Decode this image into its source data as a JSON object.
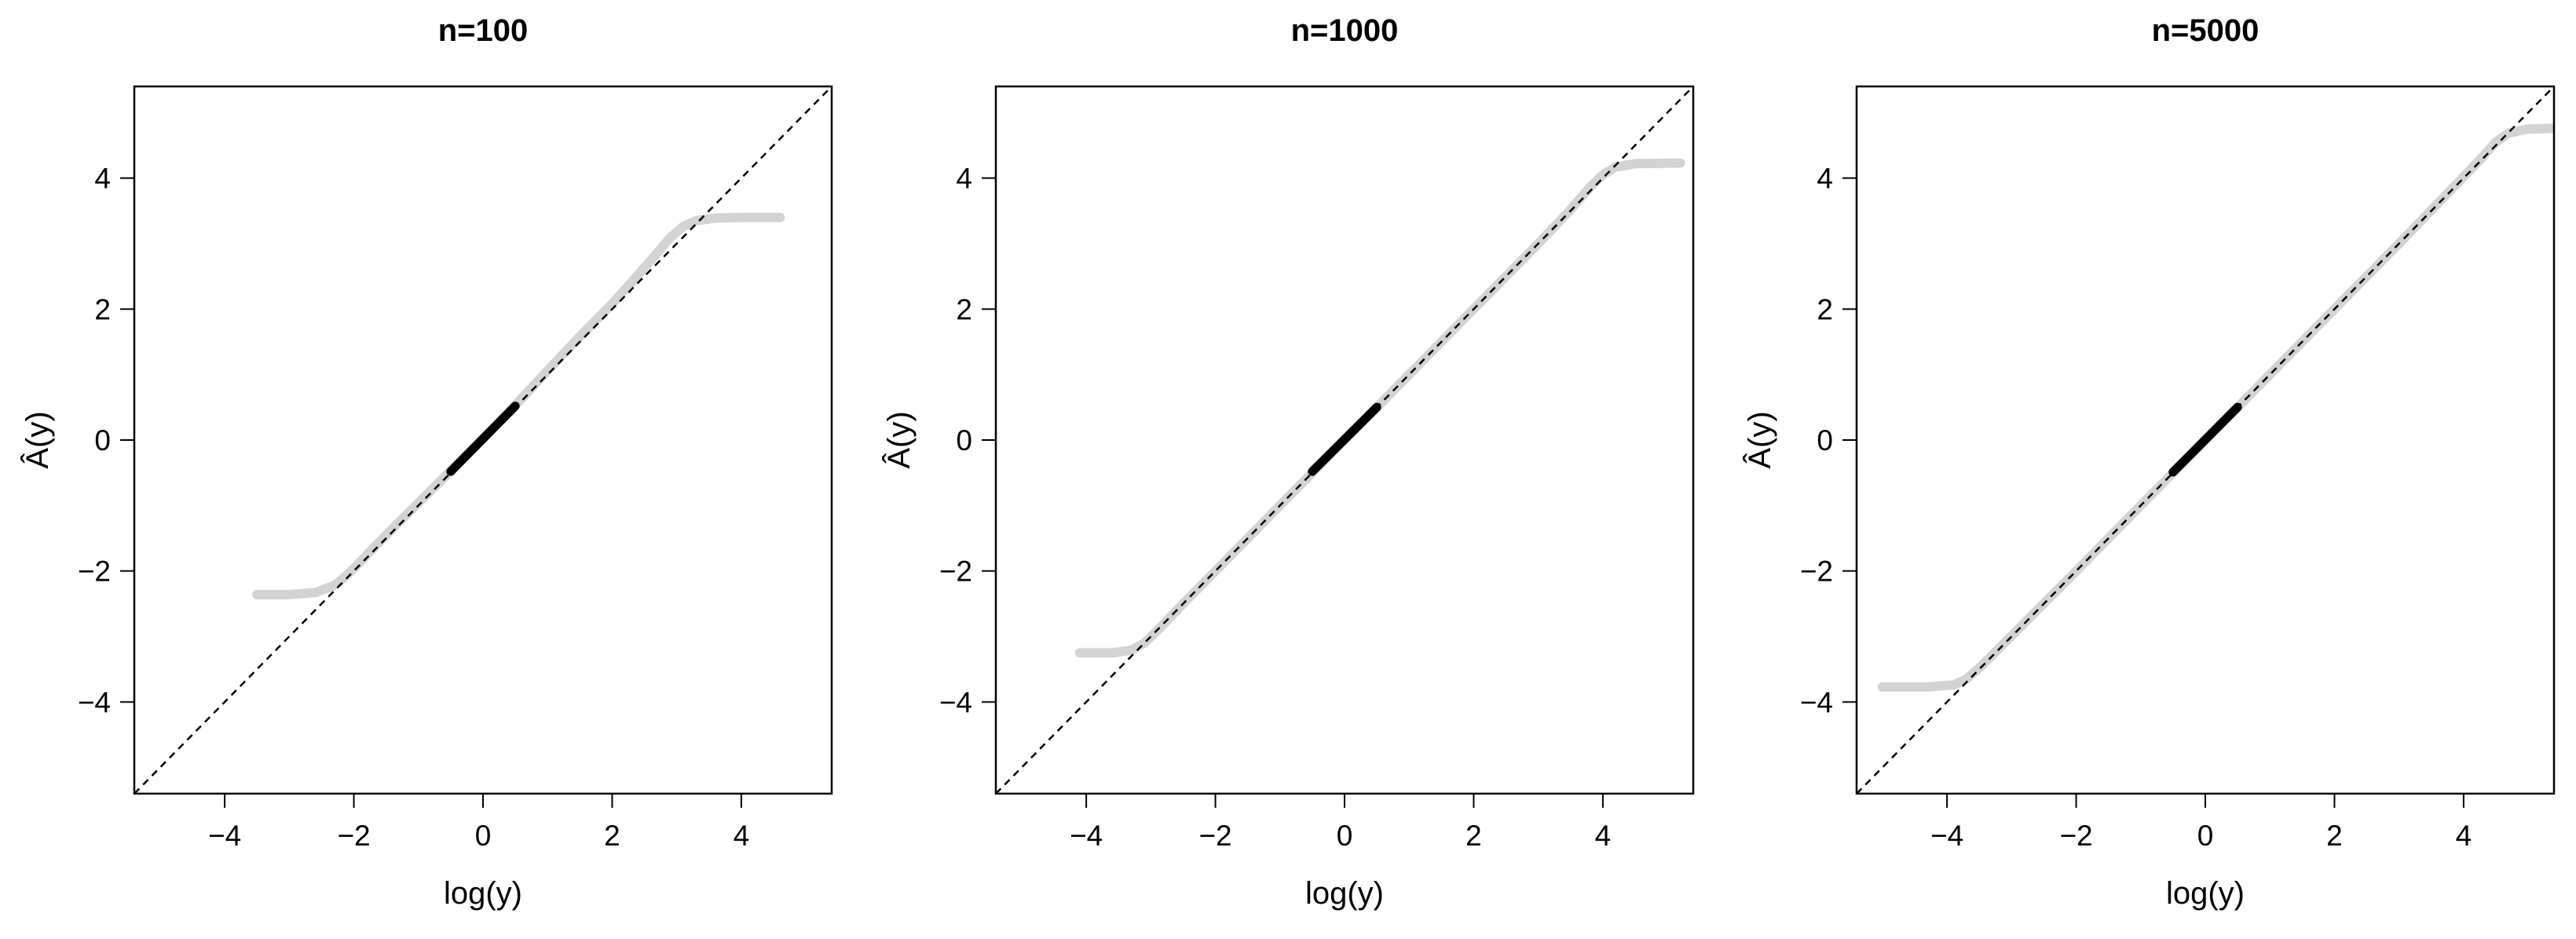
{
  "chart_data": [
    {
      "type": "line",
      "title": "n=100",
      "xlabel": "log(y)",
      "ylabel": "Â(y)",
      "xlim": [
        -5.4,
        5.4
      ],
      "ylim": [
        -5.4,
        5.4
      ],
      "xticks": [
        -4,
        -2,
        0,
        2,
        4
      ],
      "yticks": [
        -4,
        -2,
        0,
        2,
        4
      ],
      "xtick_labels": [
        "−4",
        "−2",
        "0",
        "2",
        "4"
      ],
      "ytick_labels": [
        "−4",
        "−2",
        "0",
        "2",
        "4"
      ],
      "grid": false,
      "reference_line": {
        "style": "dashed",
        "color": "#000000",
        "slope": 1,
        "intercept": 0
      },
      "series": [
        {
          "color": "#d3d3d3",
          "x": [
            -3.5,
            -3.0,
            -2.6,
            -2.3,
            -2.1,
            -1.9,
            -1.5,
            -1.0,
            -0.5,
            0.0,
            0.5,
            1.0,
            1.5,
            2.0,
            2.4,
            2.7,
            2.9,
            3.1,
            3.3,
            3.6,
            4.0,
            4.6
          ],
          "y": [
            -2.36,
            -2.36,
            -2.33,
            -2.22,
            -2.06,
            -1.86,
            -1.45,
            -0.96,
            -0.47,
            0.02,
            0.53,
            1.06,
            1.58,
            2.08,
            2.52,
            2.86,
            3.09,
            3.26,
            3.35,
            3.39,
            3.4,
            3.4
          ]
        },
        {
          "color": "#000000",
          "x": [
            -0.5,
            0.5
          ],
          "y": [
            -0.48,
            0.52
          ]
        }
      ]
    },
    {
      "type": "line",
      "title": "n=1000",
      "xlabel": "log(y)",
      "ylabel": "Â(y)",
      "xlim": [
        -5.4,
        5.4
      ],
      "ylim": [
        -5.4,
        5.4
      ],
      "xticks": [
        -4,
        -2,
        0,
        2,
        4
      ],
      "yticks": [
        -4,
        -2,
        0,
        2,
        4
      ],
      "xtick_labels": [
        "−4",
        "−2",
        "0",
        "2",
        "4"
      ],
      "ytick_labels": [
        "−4",
        "−2",
        "0",
        "2",
        "4"
      ],
      "grid": false,
      "reference_line": {
        "style": "dashed",
        "color": "#000000",
        "slope": 1,
        "intercept": 0
      },
      "series": [
        {
          "color": "#d3d3d3",
          "x": [
            -4.1,
            -3.6,
            -3.3,
            -3.1,
            -2.9,
            -2.5,
            -2.0,
            -1.0,
            0.0,
            1.0,
            2.0,
            3.0,
            3.5,
            3.8,
            4.0,
            4.2,
            4.5,
            5.2
          ],
          "y": [
            -3.25,
            -3.25,
            -3.21,
            -3.1,
            -2.91,
            -2.5,
            -2.0,
            -1.0,
            0.0,
            1.0,
            2.0,
            3.0,
            3.52,
            3.86,
            4.05,
            4.17,
            4.22,
            4.23
          ]
        },
        {
          "color": "#000000",
          "x": [
            -0.5,
            0.5
          ],
          "y": [
            -0.48,
            0.5
          ]
        }
      ]
    },
    {
      "type": "line",
      "title": "n=5000",
      "xlabel": "log(y)",
      "ylabel": "Â(y)",
      "xlim": [
        -5.4,
        5.4
      ],
      "ylim": [
        -5.4,
        5.4
      ],
      "xticks": [
        -4,
        -2,
        0,
        2,
        4
      ],
      "yticks": [
        -4,
        -2,
        0,
        2,
        4
      ],
      "xtick_labels": [
        "−4",
        "−2",
        "0",
        "2",
        "4"
      ],
      "ytick_labels": [
        "−4",
        "−2",
        "0",
        "2",
        "4"
      ],
      "grid": false,
      "reference_line": {
        "style": "dashed",
        "color": "#000000",
        "slope": 1,
        "intercept": 0
      },
      "series": [
        {
          "color": "#d3d3d3",
          "x": [
            -5.0,
            -4.3,
            -3.9,
            -3.7,
            -3.5,
            -3.0,
            -2.0,
            -1.0,
            0.0,
            1.0,
            2.0,
            3.0,
            4.0,
            4.3,
            4.5,
            4.7,
            5.0,
            5.4
          ],
          "y": [
            -3.77,
            -3.77,
            -3.74,
            -3.65,
            -3.48,
            -2.99,
            -2.0,
            -1.0,
            0.0,
            1.0,
            2.0,
            3.0,
            4.02,
            4.33,
            4.55,
            4.69,
            4.75,
            4.76
          ]
        },
        {
          "color": "#000000",
          "x": [
            -0.5,
            0.5
          ],
          "y": [
            -0.49,
            0.5
          ]
        }
      ]
    }
  ]
}
